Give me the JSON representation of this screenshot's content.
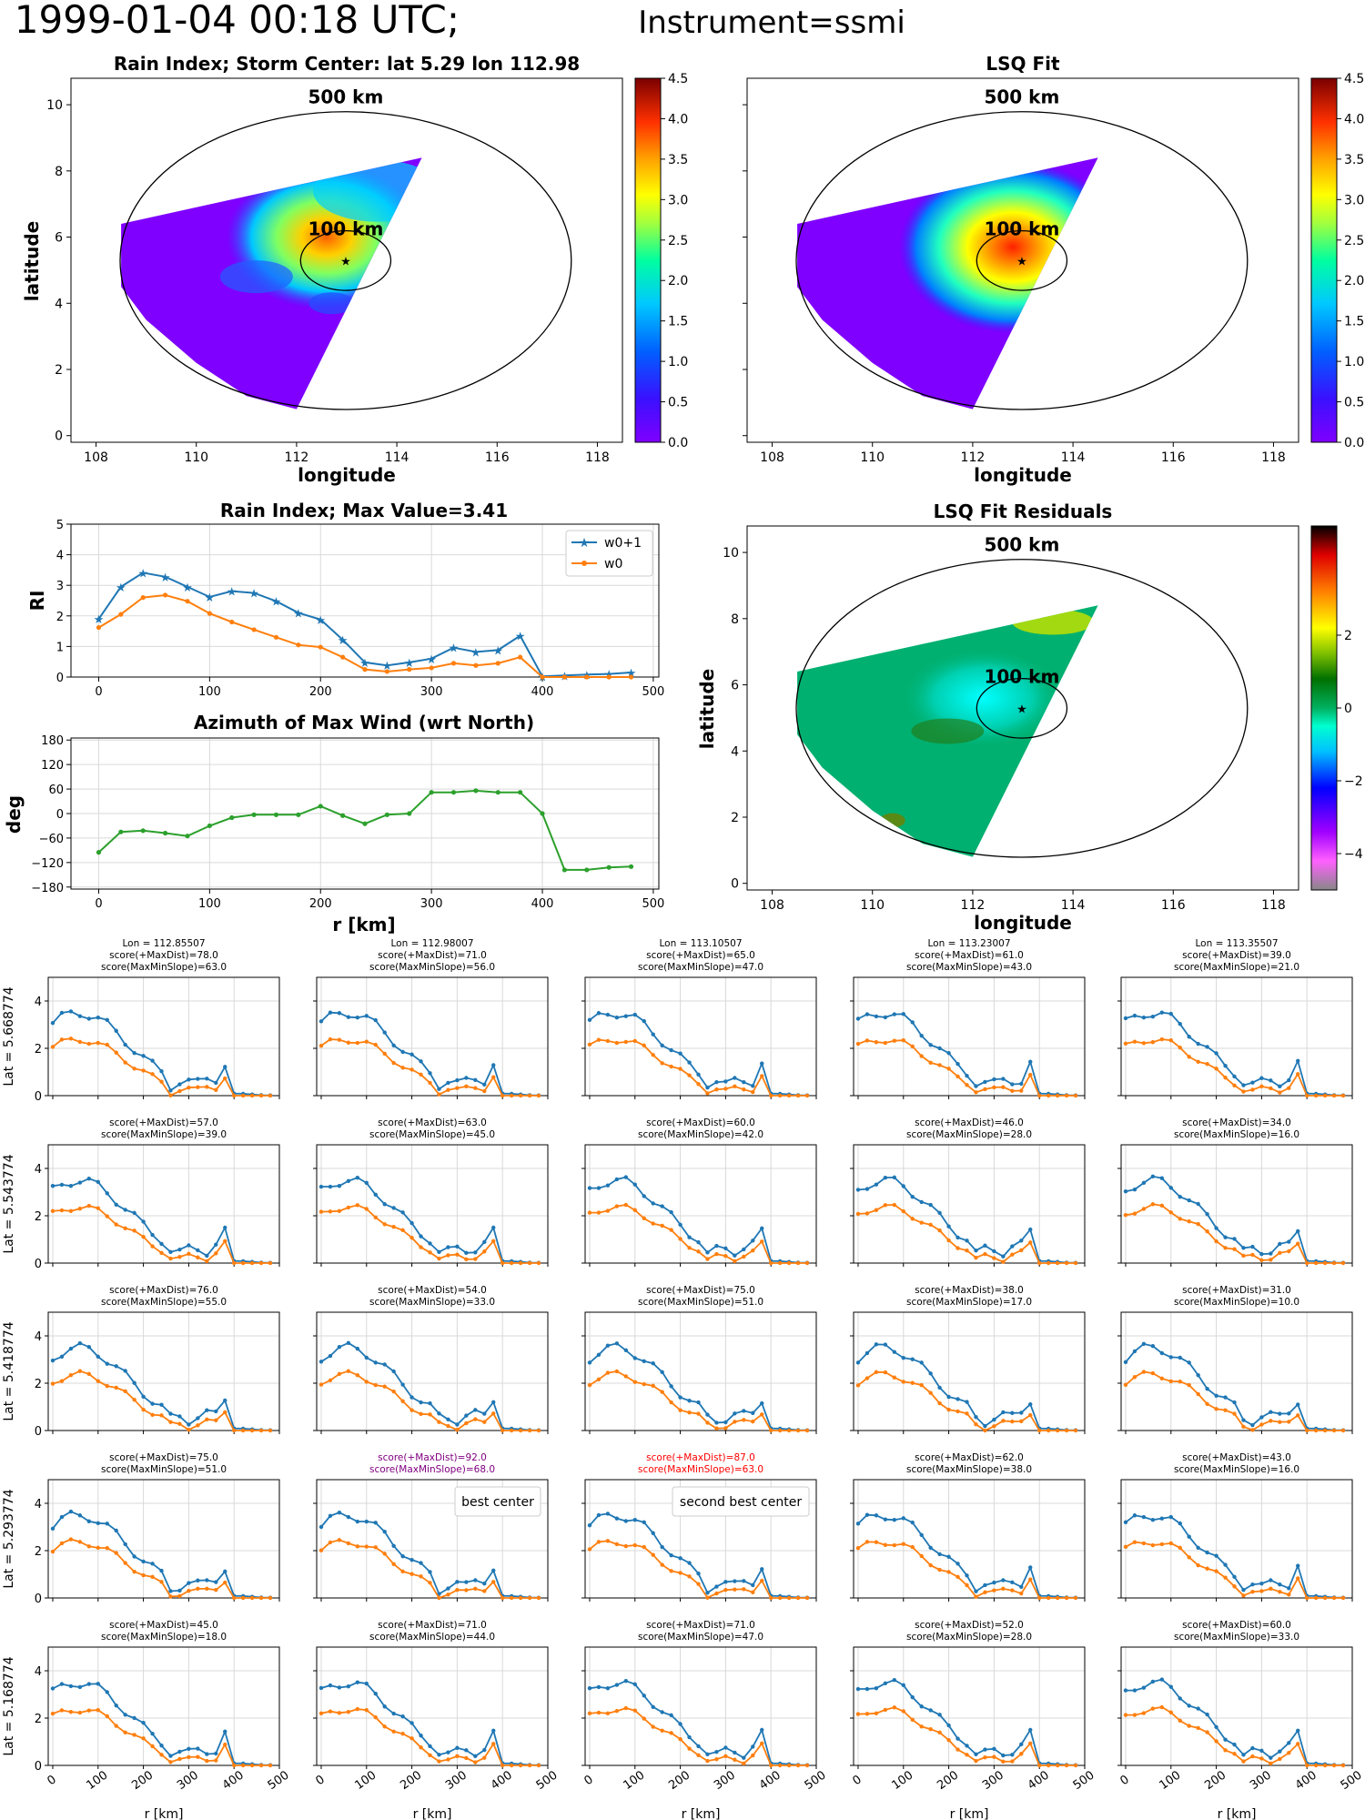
{
  "title": {
    "main": "1999-01-04 00:18 UTC;",
    "instrument": "Instrument=ssmi"
  },
  "colors": {
    "w0p1": "#1f77b4",
    "w0": "#ff7f0e",
    "azimuth": "#2ca02c",
    "grid": "#d9d9d9",
    "best": "#800080",
    "second": "#ff0000"
  },
  "chart_data": [
    {
      "type": "heatmap",
      "title": "Rain Index; Storm Center: lat 5.29 lon 112.98",
      "xlabel": "longitude",
      "ylabel": "latitude",
      "xlim": [
        107.5,
        118.5
      ],
      "ylim": [
        -0.2,
        10.8
      ],
      "xticks": [
        "108",
        "110",
        "112",
        "114",
        "116",
        "118"
      ],
      "yticks": [
        "0",
        "2",
        "4",
        "6",
        "8",
        "10"
      ],
      "ring_labels": [
        "500 km",
        "100 km"
      ],
      "colorbar": {
        "min": 0,
        "max": 4.5,
        "ticks": [
          "0.0",
          "0.5",
          "1.0",
          "1.5",
          "2.0",
          "2.5",
          "3.0",
          "3.5",
          "4.0",
          "4.5"
        ]
      },
      "center": {
        "lat": 5.29,
        "lon": 112.98
      }
    },
    {
      "type": "heatmap",
      "title": "LSQ Fit",
      "xlabel": "longitude",
      "xticks": [
        "108",
        "110",
        "112",
        "114",
        "116",
        "118"
      ],
      "ring_labels": [
        "500 km",
        "100 km"
      ],
      "colorbar": {
        "min": 0,
        "max": 4.5,
        "ticks": [
          "0.0",
          "0.5",
          "1.0",
          "1.5",
          "2.0",
          "2.5",
          "3.0",
          "3.5",
          "4.0",
          "4.5"
        ]
      }
    },
    {
      "type": "line",
      "title": "Rain Index; Max Value=3.41",
      "ylabel": "RI",
      "xlim": [
        -25,
        505
      ],
      "ylim": [
        0,
        5
      ],
      "xticks": [
        "0",
        "100",
        "200",
        "300",
        "400",
        "500"
      ],
      "yticks": [
        "0",
        "1",
        "2",
        "3",
        "4",
        "5"
      ],
      "x": [
        0,
        20,
        40,
        60,
        80,
        100,
        120,
        140,
        160,
        180,
        200,
        220,
        240,
        260,
        280,
        300,
        320,
        340,
        360,
        380,
        400,
        420,
        440,
        460,
        480
      ],
      "series": [
        {
          "name": "w0+1",
          "values": [
            1.9,
            2.95,
            3.41,
            3.28,
            2.95,
            2.62,
            2.81,
            2.75,
            2.48,
            2.1,
            1.88,
            1.22,
            0.48,
            0.38,
            0.48,
            0.6,
            0.96,
            0.82,
            0.88,
            1.35,
            0.02,
            0.05,
            0.08,
            0.1,
            0.15
          ]
        },
        {
          "name": "w0",
          "values": [
            1.62,
            2.05,
            2.6,
            2.68,
            2.48,
            2.08,
            1.8,
            1.55,
            1.3,
            1.05,
            0.98,
            0.65,
            0.25,
            0.18,
            0.25,
            0.3,
            0.45,
            0.38,
            0.45,
            0.65,
            0.0,
            0.0,
            0.0,
            0.0,
            0.0
          ]
        }
      ],
      "legend": "top-right"
    },
    {
      "type": "line",
      "title": "Azimuth of Max Wind (wrt North)",
      "xlabel": "r [km]",
      "ylabel": "deg",
      "xlim": [
        -25,
        505
      ],
      "ylim": [
        -185,
        185
      ],
      "xticks": [
        "0",
        "100",
        "200",
        "300",
        "400",
        "500"
      ],
      "yticks": [
        "180",
        "120",
        "60",
        "0",
        "−60",
        "−120",
        "−180"
      ],
      "x": [
        0,
        20,
        40,
        60,
        80,
        100,
        120,
        140,
        160,
        180,
        200,
        220,
        240,
        260,
        280,
        300,
        320,
        340,
        360,
        380,
        400,
        420,
        440,
        460,
        480
      ],
      "values": [
        -95,
        -45,
        -42,
        -48,
        -55,
        -30,
        -10,
        -3,
        -3,
        -3,
        18,
        -5,
        -25,
        -3,
        0,
        52,
        52,
        56,
        52,
        52,
        0,
        -138,
        -138,
        -132,
        -130
      ]
    },
    {
      "type": "heatmap",
      "title": "LSQ Fit Residuals",
      "xlabel": "longitude",
      "ylabel": "latitude",
      "xticks": [
        "108",
        "110",
        "112",
        "114",
        "116",
        "118"
      ],
      "yticks": [
        "0",
        "2",
        "4",
        "6",
        "8",
        "10"
      ],
      "ring_labels": [
        "500 km",
        "100 km"
      ],
      "colorbar": {
        "min": -5,
        "max": 5,
        "ticks": [
          "2",
          "0",
          "−2",
          "−4"
        ]
      }
    },
    {
      "type": "line",
      "grid_rows": [
        "Lat = 5.668774",
        "Lat = 5.543774",
        "Lat = 5.418774",
        "Lat = 5.293774",
        "Lat = 5.168774"
      ],
      "grid_cols": [
        "Lon = 112.85507",
        "Lon = 112.98007",
        "Lon = 113.10507",
        "Lon = 113.23007",
        "Lon = 113.35507"
      ],
      "xlabel": "r [km]",
      "xticks": [
        "0",
        "100",
        "200",
        "300",
        "400",
        "500"
      ],
      "yticks": [
        "0",
        "2",
        "4"
      ],
      "scores": [
        [
          [
            "score(+MaxDist)=78.0",
            "score(MaxMinSlope)=63.0"
          ],
          [
            "score(+MaxDist)=71.0",
            "score(MaxMinSlope)=56.0"
          ],
          [
            "score(+MaxDist)=65.0",
            "score(MaxMinSlope)=47.0"
          ],
          [
            "score(+MaxDist)=61.0",
            "score(MaxMinSlope)=43.0"
          ],
          [
            "score(+MaxDist)=39.0",
            "score(MaxMinSlope)=21.0"
          ]
        ],
        [
          [
            "score(+MaxDist)=57.0",
            "score(MaxMinSlope)=39.0"
          ],
          [
            "score(+MaxDist)=63.0",
            "score(MaxMinSlope)=45.0"
          ],
          [
            "score(+MaxDist)=60.0",
            "score(MaxMinSlope)=42.0"
          ],
          [
            "score(+MaxDist)=46.0",
            "score(MaxMinSlope)=28.0"
          ],
          [
            "score(+MaxDist)=34.0",
            "score(MaxMinSlope)=16.0"
          ]
        ],
        [
          [
            "score(+MaxDist)=76.0",
            "score(MaxMinSlope)=55.0"
          ],
          [
            "score(+MaxDist)=54.0",
            "score(MaxMinSlope)=33.0"
          ],
          [
            "score(+MaxDist)=75.0",
            "score(MaxMinSlope)=51.0"
          ],
          [
            "score(+MaxDist)=38.0",
            "score(MaxMinSlope)=17.0"
          ],
          [
            "score(+MaxDist)=31.0",
            "score(MaxMinSlope)=10.0"
          ]
        ],
        [
          [
            "score(+MaxDist)=75.0",
            "score(MaxMinSlope)=51.0"
          ],
          [
            "score(+MaxDist)=92.0",
            "score(MaxMinSlope)=68.0"
          ],
          [
            "score(+MaxDist)=87.0",
            "score(MaxMinSlope)=63.0"
          ],
          [
            "score(+MaxDist)=62.0",
            "score(MaxMinSlope)=38.0"
          ],
          [
            "score(+MaxDist)=43.0",
            "score(MaxMinSlope)=16.0"
          ]
        ],
        [
          [
            "score(+MaxDist)=45.0",
            "score(MaxMinSlope)=18.0"
          ],
          [
            "score(+MaxDist)=71.0",
            "score(MaxMinSlope)=44.0"
          ],
          [
            "score(+MaxDist)=71.0",
            "score(MaxMinSlope)=47.0"
          ],
          [
            "score(+MaxDist)=52.0",
            "score(MaxMinSlope)=28.0"
          ],
          [
            "score(+MaxDist)=60.0",
            "score(MaxMinSlope)=33.0"
          ]
        ]
      ],
      "highlights": {
        "best": {
          "row": 3,
          "col": 1,
          "label": "best center"
        },
        "second": {
          "row": 3,
          "col": 2,
          "label": "second best center"
        }
      }
    }
  ]
}
